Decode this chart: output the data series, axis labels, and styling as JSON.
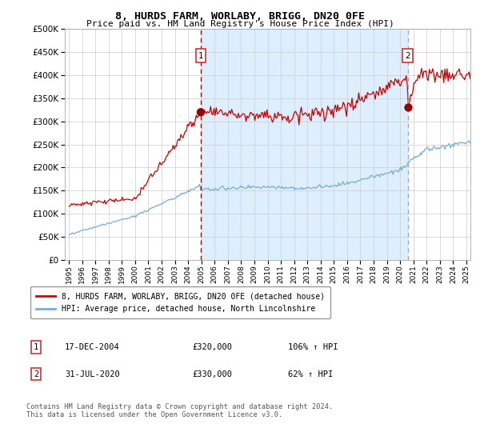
{
  "title": "8, HURDS FARM, WORLABY, BRIGG, DN20 0FE",
  "subtitle": "Price paid vs. HM Land Registry's House Price Index (HPI)",
  "legend_line1": "8, HURDS FARM, WORLABY, BRIGG, DN20 0FE (detached house)",
  "legend_line2": "HPI: Average price, detached house, North Lincolnshire",
  "annotation1_label": "1",
  "annotation1_date": "17-DEC-2004",
  "annotation1_price": "£320,000",
  "annotation1_hpi": "106% ↑ HPI",
  "annotation2_label": "2",
  "annotation2_date": "31-JUL-2020",
  "annotation2_price": "£330,000",
  "annotation2_hpi": "62% ↑ HPI",
  "copyright": "Contains HM Land Registry data © Crown copyright and database right 2024.\nThis data is licensed under the Open Government Licence v3.0.",
  "hpi_color": "#7aadd4",
  "price_color": "#cc0000",
  "marker_color": "#990000",
  "bg_shade_color": "#ddeeff",
  "vert_line1_color": "#cc0000",
  "vert_line2_color": "#aaaaaa",
  "ylim": [
    0,
    500000
  ],
  "yticks": [
    0,
    50000,
    100000,
    150000,
    200000,
    250000,
    300000,
    350000,
    400000,
    450000,
    500000
  ],
  "x_start_year": 1995,
  "x_end_year": 2025,
  "purchase1_year": 2004,
  "purchase1_month": 12,
  "purchase1_day": 17,
  "purchase1_value": 320000,
  "purchase2_year": 2020,
  "purchase2_month": 7,
  "purchase2_day": 31,
  "purchase2_value": 330000
}
